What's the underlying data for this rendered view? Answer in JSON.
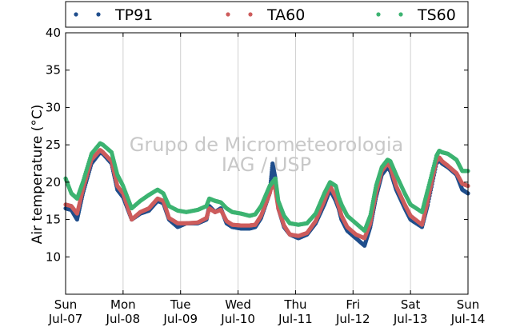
{
  "watermark": {
    "line1": "Grupo de Micrometeorologia",
    "line2": "IAG / USP"
  },
  "chart_data": {
    "type": "scatter",
    "title": "",
    "xlabel": "",
    "ylabel": "Air temperature (°C)",
    "ylim": [
      5,
      40
    ],
    "xlim": [
      0,
      7
    ],
    "yticks": [
      10,
      15,
      20,
      25,
      30,
      35,
      40
    ],
    "xticks": [
      {
        "day": "Sun",
        "date": "Jul-07"
      },
      {
        "day": "Mon",
        "date": "Jul-08"
      },
      {
        "day": "Tue",
        "date": "Jul-09"
      },
      {
        "day": "Wed",
        "date": "Jul-10"
      },
      {
        "day": "Thu",
        "date": "Jul-11"
      },
      {
        "day": "Fri",
        "date": "Jul-12"
      },
      {
        "day": "Sat",
        "date": "Jul-13"
      },
      {
        "day": "Sun",
        "date": "Jul-14"
      }
    ],
    "grid": "vertical",
    "legend_position": "top",
    "x_unit": "days since Jul-07 00:00",
    "series": [
      {
        "name": "TP91",
        "color": "#1f4e8c",
        "x": [
          0,
          0.1,
          0.2,
          0.3,
          0.45,
          0.6,
          0.65,
          0.8,
          0.9,
          1.0,
          1.15,
          1.3,
          1.45,
          1.6,
          1.7,
          1.8,
          1.95,
          2.1,
          2.3,
          2.45,
          2.5,
          2.6,
          2.7,
          2.8,
          2.9,
          3.05,
          3.2,
          3.3,
          3.4,
          3.55,
          3.6,
          3.65,
          3.7,
          3.8,
          3.9,
          4.05,
          4.2,
          4.35,
          4.5,
          4.6,
          4.7,
          4.75,
          4.8,
          4.9,
          5.05,
          5.2,
          5.3,
          5.4,
          5.5,
          5.6,
          5.65,
          5.75,
          5.9,
          6.0,
          6.2,
          6.3,
          6.45,
          6.5,
          6.55,
          6.65,
          6.8,
          6.9,
          7.0
        ],
        "y": [
          16.5,
          16.3,
          15.0,
          18.5,
          22.5,
          24.0,
          23.8,
          22.5,
          19.0,
          18.0,
          15.0,
          15.8,
          16.2,
          17.5,
          17.2,
          15.0,
          14.0,
          14.5,
          14.5,
          15.0,
          16.8,
          16.0,
          16.5,
          14.5,
          14.0,
          13.8,
          13.8,
          14.0,
          15.2,
          18.5,
          22.5,
          20.5,
          16.5,
          14.0,
          13.0,
          12.5,
          13.0,
          14.5,
          17.0,
          19.0,
          17.5,
          16.5,
          15.0,
          13.5,
          12.5,
          11.5,
          14.0,
          18.0,
          21.0,
          22.0,
          21.5,
          19.0,
          16.5,
          15.0,
          14.0,
          17.0,
          22.5,
          23.0,
          22.5,
          22.0,
          21.0,
          19.0,
          18.5
        ]
      },
      {
        "name": "TA60",
        "color": "#cd5c5c",
        "x": [
          0,
          0.1,
          0.2,
          0.3,
          0.45,
          0.6,
          0.65,
          0.8,
          0.9,
          1.0,
          1.15,
          1.3,
          1.45,
          1.6,
          1.7,
          1.8,
          1.95,
          2.1,
          2.3,
          2.45,
          2.5,
          2.6,
          2.7,
          2.8,
          2.9,
          3.05,
          3.2,
          3.3,
          3.4,
          3.55,
          3.6,
          3.65,
          3.7,
          3.8,
          3.9,
          4.05,
          4.2,
          4.35,
          4.5,
          4.6,
          4.7,
          4.75,
          4.8,
          4.9,
          5.05,
          5.2,
          5.3,
          5.4,
          5.5,
          5.6,
          5.65,
          5.75,
          5.9,
          6.0,
          6.2,
          6.3,
          6.45,
          6.5,
          6.55,
          6.65,
          6.8,
          6.9,
          7.0
        ],
        "y": [
          17.0,
          16.8,
          15.8,
          19.0,
          23.0,
          24.3,
          24.0,
          22.8,
          19.5,
          18.5,
          15.0,
          16.0,
          16.5,
          17.8,
          17.5,
          15.2,
          14.5,
          14.5,
          14.6,
          15.2,
          16.5,
          16.0,
          16.3,
          14.8,
          14.3,
          14.2,
          14.2,
          14.3,
          15.5,
          18.5,
          20.0,
          19.0,
          16.5,
          14.2,
          13.0,
          12.8,
          13.2,
          14.8,
          17.5,
          19.5,
          18.0,
          16.8,
          15.5,
          14.0,
          13.0,
          12.5,
          14.5,
          18.5,
          21.5,
          22.5,
          22.0,
          19.5,
          17.0,
          15.5,
          14.3,
          17.5,
          22.8,
          23.3,
          22.8,
          22.2,
          21.2,
          19.8,
          19.5
        ]
      },
      {
        "name": "TS60",
        "color": "#3cb371",
        "x": [
          0,
          0.1,
          0.2,
          0.3,
          0.45,
          0.6,
          0.65,
          0.8,
          0.9,
          1.0,
          1.15,
          1.3,
          1.45,
          1.6,
          1.7,
          1.8,
          1.95,
          2.1,
          2.3,
          2.45,
          2.5,
          2.6,
          2.7,
          2.8,
          2.9,
          3.05,
          3.2,
          3.3,
          3.4,
          3.55,
          3.6,
          3.65,
          3.7,
          3.8,
          3.9,
          4.05,
          4.2,
          4.35,
          4.5,
          4.6,
          4.7,
          4.75,
          4.8,
          4.9,
          5.05,
          5.2,
          5.3,
          5.4,
          5.5,
          5.6,
          5.65,
          5.75,
          5.9,
          6.0,
          6.2,
          6.3,
          6.45,
          6.5,
          6.55,
          6.65,
          6.8,
          6.9,
          7.0
        ],
        "y": [
          20.5,
          18.5,
          17.8,
          20.0,
          23.8,
          25.2,
          25.0,
          24.0,
          21.0,
          19.5,
          16.5,
          17.5,
          18.3,
          19.0,
          18.5,
          16.8,
          16.2,
          16.0,
          16.3,
          16.8,
          17.8,
          17.5,
          17.3,
          16.5,
          16.0,
          15.8,
          15.5,
          15.7,
          16.8,
          19.5,
          20.0,
          20.5,
          17.5,
          15.5,
          14.5,
          14.3,
          14.5,
          15.8,
          18.5,
          20.0,
          19.5,
          18.0,
          17.0,
          15.5,
          14.5,
          13.5,
          15.5,
          19.5,
          22.0,
          23.0,
          22.8,
          21.0,
          18.5,
          17.0,
          16.0,
          19.0,
          23.5,
          24.2,
          24.0,
          23.8,
          23.0,
          21.5,
          21.5
        ]
      }
    ]
  }
}
